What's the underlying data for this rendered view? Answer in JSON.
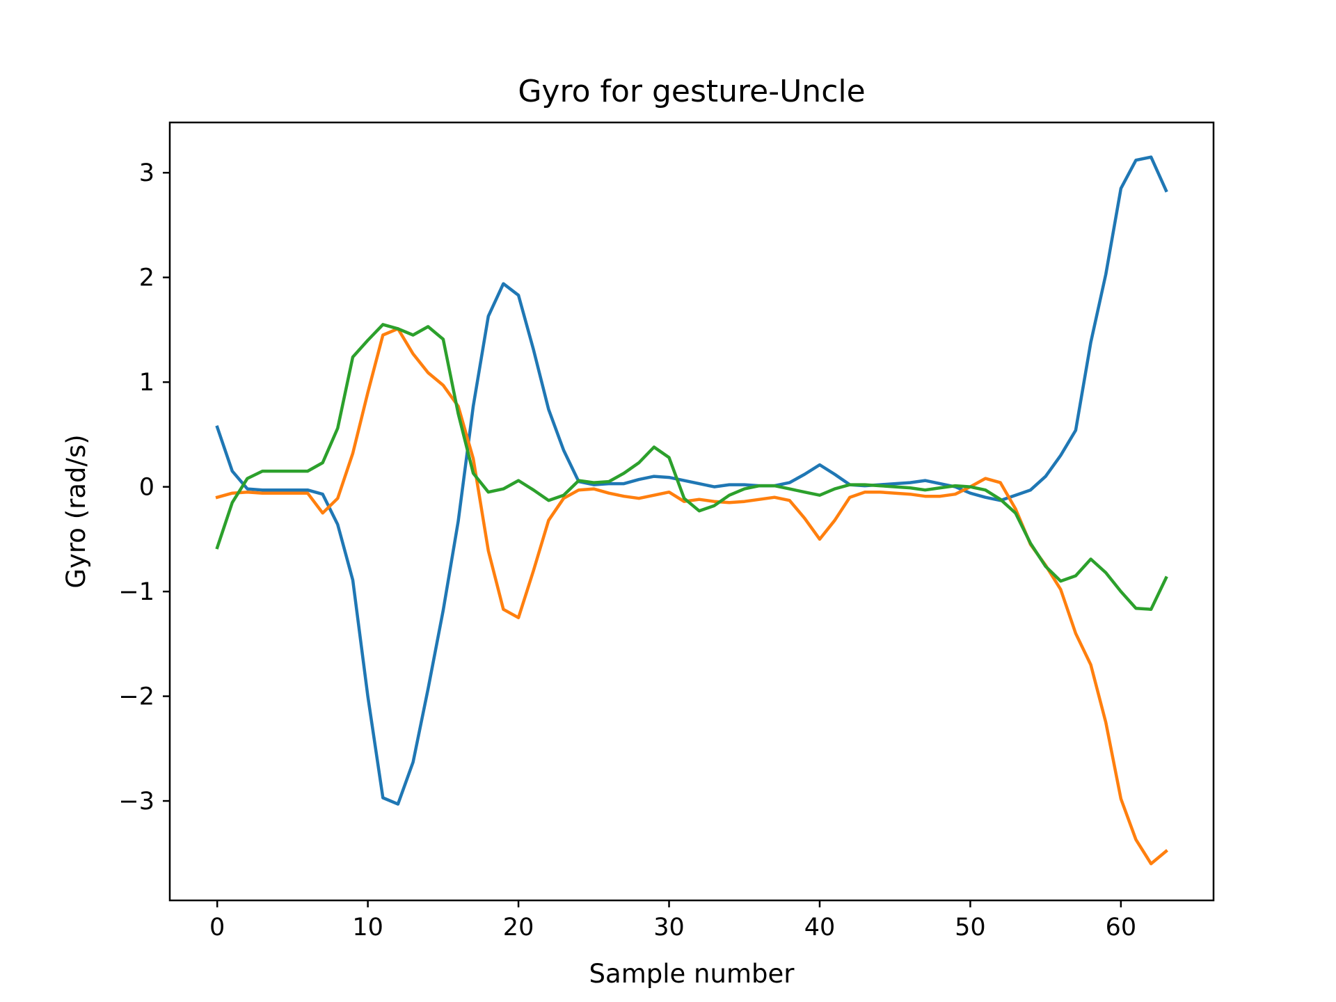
{
  "chart_data": {
    "type": "line",
    "title": "Gyro for gesture-Uncle",
    "xlabel": "Sample number",
    "ylabel": "Gyro  (rad/s)",
    "xlim": [
      -3.15,
      66.15
    ],
    "ylim": [
      -3.95,
      3.48
    ],
    "xticks": [
      0,
      10,
      20,
      30,
      40,
      50,
      60
    ],
    "xtick_labels": [
      "0",
      "10",
      "20",
      "30",
      "40",
      "50",
      "60"
    ],
    "yticks": [
      -3,
      -2,
      -1,
      0,
      1,
      2,
      3
    ],
    "ytick_labels": [
      "−3",
      "−2",
      "−1",
      "0",
      "1",
      "2",
      "3"
    ],
    "grid": false,
    "legend": "none",
    "x": [
      0,
      1,
      2,
      3,
      4,
      5,
      6,
      7,
      8,
      9,
      10,
      11,
      12,
      13,
      14,
      15,
      16,
      17,
      18,
      19,
      20,
      21,
      22,
      23,
      24,
      25,
      26,
      27,
      28,
      29,
      30,
      31,
      32,
      33,
      34,
      35,
      36,
      37,
      38,
      39,
      40,
      41,
      42,
      43,
      44,
      45,
      46,
      47,
      48,
      49,
      50,
      51,
      52,
      53,
      54,
      55,
      56,
      57,
      58,
      59,
      60,
      61,
      62,
      63
    ],
    "series": [
      {
        "color": "#1f77b4",
        "values": [
          0.57,
          0.15,
          -0.02,
          -0.03,
          -0.03,
          -0.03,
          -0.03,
          -0.07,
          -0.36,
          -0.89,
          -2.0,
          -2.97,
          -3.03,
          -2.63,
          -1.93,
          -1.18,
          -0.33,
          0.77,
          1.63,
          1.94,
          1.83,
          1.31,
          0.74,
          0.35,
          0.05,
          0.02,
          0.03,
          0.03,
          0.07,
          0.1,
          0.09,
          0.06,
          0.03,
          0.0,
          0.02,
          0.02,
          0.01,
          0.01,
          0.04,
          0.12,
          0.21,
          0.12,
          0.02,
          0.01,
          0.02,
          0.03,
          0.04,
          0.06,
          0.03,
          0.0,
          -0.06,
          -0.1,
          -0.13,
          -0.08,
          -0.03,
          0.1,
          0.3,
          0.54,
          1.38,
          2.03,
          2.85,
          3.12,
          3.15,
          2.83
        ]
      },
      {
        "color": "#ff7f0e",
        "values": [
          -0.1,
          -0.06,
          -0.05,
          -0.06,
          -0.06,
          -0.06,
          -0.06,
          -0.25,
          -0.11,
          0.32,
          0.9,
          1.45,
          1.51,
          1.27,
          1.09,
          0.97,
          0.77,
          0.27,
          -0.61,
          -1.17,
          -1.25,
          -0.8,
          -0.32,
          -0.11,
          -0.03,
          -0.02,
          -0.06,
          -0.09,
          -0.11,
          -0.08,
          -0.05,
          -0.14,
          -0.12,
          -0.14,
          -0.15,
          -0.14,
          -0.12,
          -0.1,
          -0.13,
          -0.3,
          -0.5,
          -0.32,
          -0.1,
          -0.05,
          -0.05,
          -0.06,
          -0.07,
          -0.09,
          -0.09,
          -0.07,
          0.0,
          0.08,
          0.04,
          -0.21,
          -0.55,
          -0.75,
          -0.98,
          -1.4,
          -1.7,
          -2.25,
          -2.98,
          -3.37,
          -3.6,
          -3.48
        ]
      },
      {
        "color": "#2ca02c",
        "values": [
          -0.58,
          -0.15,
          0.08,
          0.15,
          0.15,
          0.15,
          0.15,
          0.23,
          0.56,
          1.24,
          1.4,
          1.55,
          1.51,
          1.45,
          1.53,
          1.41,
          0.7,
          0.13,
          -0.05,
          -0.02,
          0.06,
          -0.03,
          -0.13,
          -0.08,
          0.06,
          0.04,
          0.05,
          0.13,
          0.23,
          0.38,
          0.28,
          -0.11,
          -0.23,
          -0.18,
          -0.08,
          -0.02,
          0.01,
          0.01,
          -0.02,
          -0.05,
          -0.08,
          -0.02,
          0.02,
          0.02,
          0.01,
          0.0,
          -0.01,
          -0.03,
          -0.01,
          0.01,
          0.0,
          -0.03,
          -0.12,
          -0.25,
          -0.54,
          -0.76,
          -0.9,
          -0.85,
          -0.69,
          -0.82,
          -1.0,
          -1.16,
          -1.17,
          -0.87
        ]
      }
    ]
  }
}
